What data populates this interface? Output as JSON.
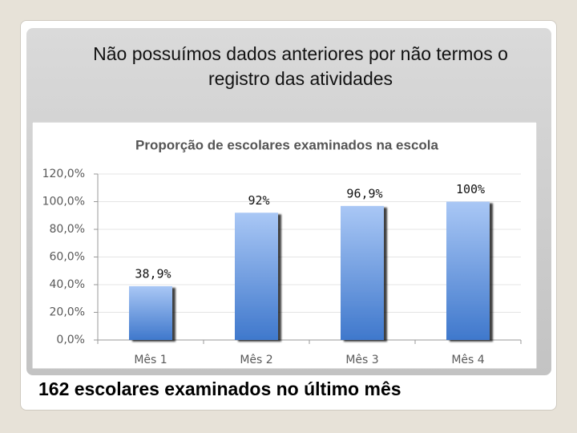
{
  "slide": {
    "heading": "Não possuímos dados anteriores por não termos o registro das atividades",
    "caption": "162 escolares examinados no último mês"
  },
  "chart_data": {
    "type": "bar",
    "title": "Proporção de escolares examinados na escola",
    "categories": [
      "Mês 1",
      "Mês 2",
      "Mês 3",
      "Mês 4"
    ],
    "values": [
      38.9,
      92,
      96.9,
      100
    ],
    "value_labels": [
      "38,9%",
      "92%",
      "96,9%",
      "100%"
    ],
    "color": "#4a7fcf",
    "ylim": [
      0,
      120
    ],
    "yticks": [
      {
        "value": 0,
        "label": "0,0%"
      },
      {
        "value": 20,
        "label": "20,0%"
      },
      {
        "value": 40,
        "label": "40,0%"
      },
      {
        "value": 60,
        "label": "60,0%"
      },
      {
        "value": 80,
        "label": "80,0%"
      },
      {
        "value": 100,
        "label": "100,0%"
      },
      {
        "value": 120,
        "label": "120,0%"
      }
    ],
    "grid": true
  }
}
